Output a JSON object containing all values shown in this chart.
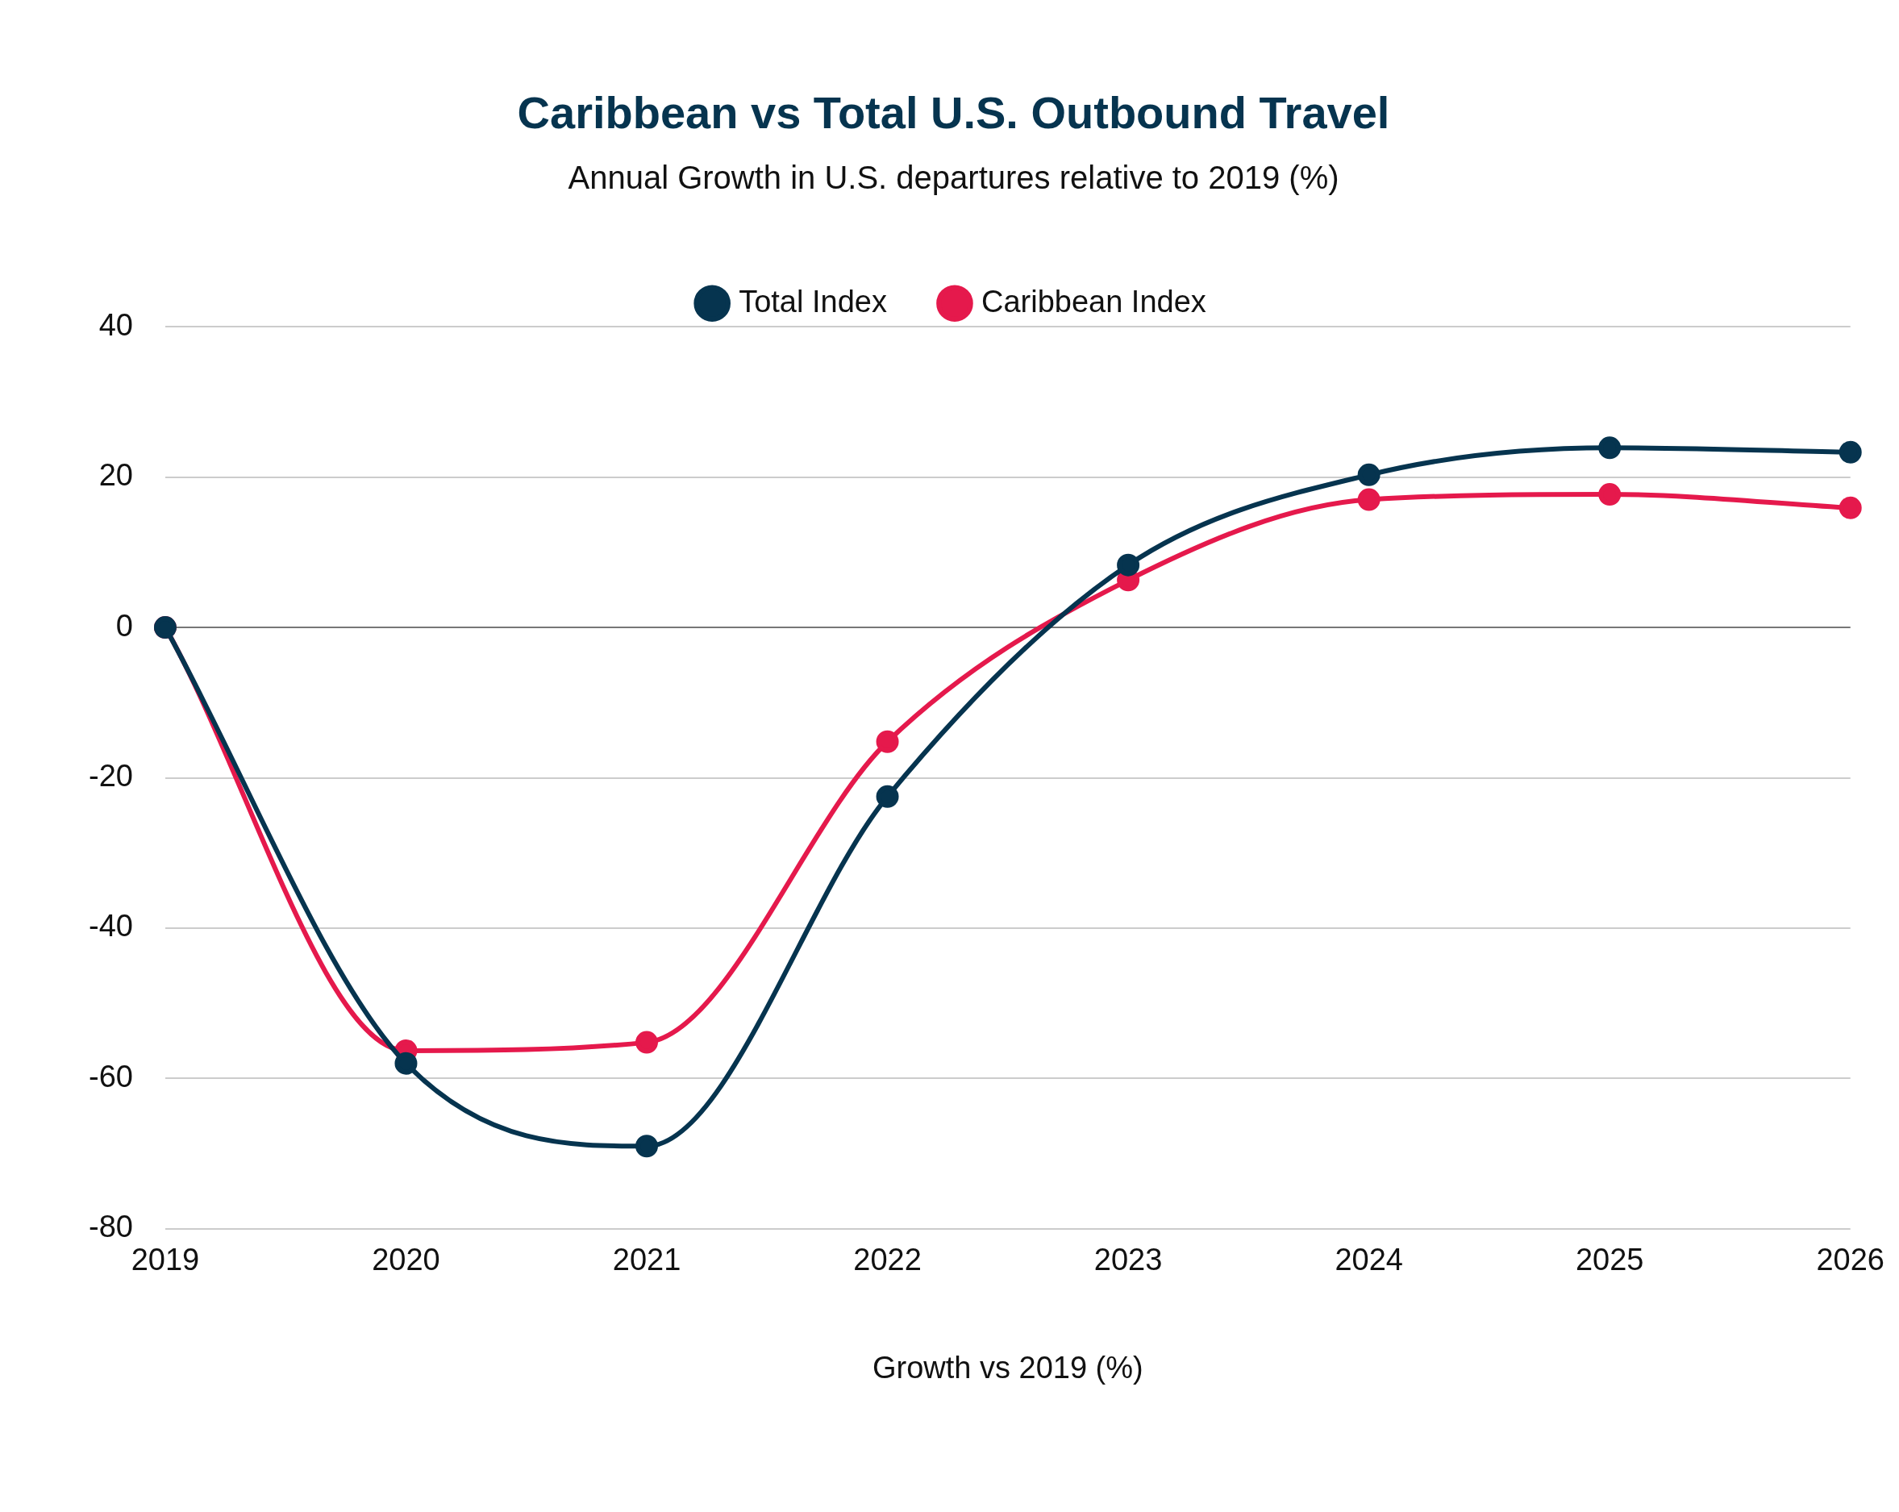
{
  "chart_data": {
    "type": "line",
    "title": "Caribbean vs Total U.S. Outbound Travel",
    "subtitle": "Annual Growth in U.S. departures relative to 2019 (%)",
    "xlabel": "Growth vs 2019 (%)",
    "categories": [
      "2019",
      "2020",
      "2021",
      "2022",
      "2023",
      "2024",
      "2025",
      "2026"
    ],
    "series": [
      {
        "name": "Total Index",
        "color": "#06344f",
        "values": [
          0,
          -58,
          -69,
          -22.5,
          8.3,
          20.3,
          23.9,
          23.3
        ]
      },
      {
        "name": "Caribbean Index",
        "color": "#e5194c",
        "values": [
          0,
          -56.3,
          -55.2,
          -15.2,
          6.3,
          17,
          17.7,
          15.9
        ]
      }
    ],
    "ylim": [
      -80,
      40
    ],
    "yticks": [
      -80,
      -60,
      -40,
      -20,
      0,
      20,
      40
    ],
    "grid": "y",
    "legend": "top",
    "marker": "circle",
    "line_style": "solid"
  }
}
